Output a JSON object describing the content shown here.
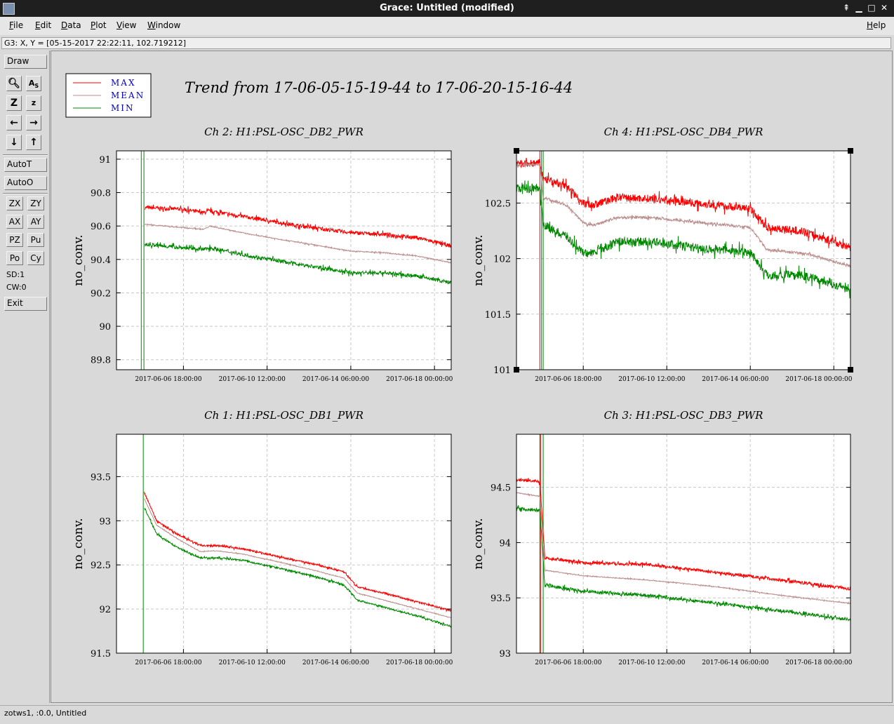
{
  "window": {
    "title": "Grace: Untitled (modified)"
  },
  "menu": [
    "File",
    "Edit",
    "Data",
    "Plot",
    "View",
    "Window"
  ],
  "help": "Help",
  "locator": "G3: X, Y = [05-15-2017 22:22:11, 102.719212]",
  "tools": {
    "draw": "Draw",
    "autoT": "AutoT",
    "autoO": "AutoO",
    "grid": [
      "ZX",
      "ZY",
      "AX",
      "AY",
      "PZ",
      "Pu",
      "Po",
      "Cy"
    ],
    "sd": "SD:1",
    "cw": "CW:0",
    "exit": "Exit"
  },
  "status": "zotws1, :0.0, Untitled",
  "plot": {
    "title": "Trend from 17-06-05-15-19-44 to 17-06-20-15-16-44",
    "legend": [
      {
        "label": "MAX",
        "color": "#ff0000"
      },
      {
        "label": "MEAN",
        "color": "#bc8f8f"
      },
      {
        "label": "MIN",
        "color": "#008800"
      }
    ]
  },
  "chart_data": [
    {
      "type": "line",
      "title": "Ch 2: H1:PSL-OSC_DB2_PWR",
      "ylabel": "no_conv.",
      "xticks": [
        "2017-06-06 18:00:00",
        "2017-06-10 12:00:00",
        "2017-06-14 06:00:00",
        "2017-06-18 00:00:00"
      ],
      "yticks": [
        89.8,
        90,
        90.2,
        90.4,
        90.6,
        90.8,
        91
      ],
      "ylim": [
        89.74,
        91.05
      ],
      "grid": true,
      "spikes": [
        {
          "x": 0.074,
          "color": "#008800"
        },
        {
          "x": 0.082,
          "color": "#008800"
        }
      ],
      "series": [
        {
          "name": "MAX",
          "color": "#ff0000",
          "start": 0.085,
          "noise": 0.011,
          "points": [
            [
              0.085,
              90.71
            ],
            [
              0.2,
              90.7
            ],
            [
              0.26,
              90.68
            ],
            [
              0.28,
              90.69
            ],
            [
              0.4,
              90.65
            ],
            [
              0.55,
              90.6
            ],
            [
              0.7,
              90.56
            ],
            [
              0.8,
              90.55
            ],
            [
              0.9,
              90.53
            ],
            [
              1,
              90.48
            ]
          ]
        },
        {
          "name": "MEAN",
          "color": "#bc8f8f",
          "start": 0.085,
          "noise": 0.003,
          "points": [
            [
              0.085,
              90.61
            ],
            [
              0.2,
              90.59
            ],
            [
              0.26,
              90.58
            ],
            [
              0.28,
              90.6
            ],
            [
              0.4,
              90.55
            ],
            [
              0.55,
              90.5
            ],
            [
              0.7,
              90.45
            ],
            [
              0.8,
              90.44
            ],
            [
              0.9,
              90.42
            ],
            [
              1,
              90.38
            ]
          ]
        },
        {
          "name": "MIN",
          "color": "#008800",
          "start": 0.085,
          "noise": 0.011,
          "points": [
            [
              0.085,
              90.49
            ],
            [
              0.2,
              90.47
            ],
            [
              0.26,
              90.46
            ],
            [
              0.28,
              90.47
            ],
            [
              0.4,
              90.42
            ],
            [
              0.55,
              90.37
            ],
            [
              0.7,
              90.32
            ],
            [
              0.8,
              90.32
            ],
            [
              0.9,
              90.3
            ],
            [
              1,
              90.26
            ]
          ]
        }
      ]
    },
    {
      "type": "line",
      "title": "Ch 4: H1:PSL-OSC_DB4_PWR",
      "ylabel": "no_conv.",
      "xticks": [
        "2017-06-06 18:00:00",
        "2017-06-10 12:00:00",
        "2017-06-14 06:00:00",
        "2017-06-18 00:00:00"
      ],
      "yticks": [
        101,
        101.5,
        102,
        102.5
      ],
      "ylim": [
        101,
        102.97
      ],
      "grid": true,
      "selected": true,
      "spikes": [
        {
          "x": 0.07,
          "color": "#ff0000"
        },
        {
          "x": 0.08,
          "color": "#008800"
        },
        {
          "x": 0.075,
          "color": "#008800"
        }
      ],
      "series": [
        {
          "name": "MAX",
          "color": "#ff0000",
          "start": 0,
          "noise": 0.035,
          "points": [
            [
              0,
              102.85
            ],
            [
              0.07,
              102.86
            ],
            [
              0.08,
              102.72
            ],
            [
              0.15,
              102.65
            ],
            [
              0.2,
              102.5
            ],
            [
              0.23,
              102.48
            ],
            [
              0.3,
              102.55
            ],
            [
              0.4,
              102.54
            ],
            [
              0.6,
              102.48
            ],
            [
              0.7,
              102.45
            ],
            [
              0.75,
              102.28
            ],
            [
              0.85,
              102.25
            ],
            [
              0.9,
              102.2
            ],
            [
              1,
              102.1
            ]
          ]
        },
        {
          "name": "MEAN",
          "color": "#bc8f8f",
          "start": 0,
          "noise": 0.012,
          "points": [
            [
              0,
              102.84
            ],
            [
              0.07,
              102.85
            ],
            [
              0.08,
              102.55
            ],
            [
              0.15,
              102.48
            ],
            [
              0.2,
              102.32
            ],
            [
              0.23,
              102.3
            ],
            [
              0.3,
              102.37
            ],
            [
              0.4,
              102.37
            ],
            [
              0.6,
              102.31
            ],
            [
              0.7,
              102.28
            ],
            [
              0.75,
              102.08
            ],
            [
              0.85,
              102.05
            ],
            [
              0.9,
              102.02
            ],
            [
              1,
              101.93
            ]
          ]
        },
        {
          "name": "MIN",
          "color": "#008800",
          "start": 0,
          "noise": 0.04,
          "points": [
            [
              0,
              102.63
            ],
            [
              0.07,
              102.64
            ],
            [
              0.08,
              102.3
            ],
            [
              0.15,
              102.2
            ],
            [
              0.2,
              102.05
            ],
            [
              0.23,
              102.05
            ],
            [
              0.3,
              102.15
            ],
            [
              0.4,
              102.15
            ],
            [
              0.6,
              102.08
            ],
            [
              0.7,
              102.06
            ],
            [
              0.75,
              101.85
            ],
            [
              0.85,
              101.85
            ],
            [
              0.9,
              101.82
            ],
            [
              1,
              101.72
            ]
          ]
        }
      ]
    },
    {
      "type": "line",
      "title": "Ch 1: H1:PSL-OSC_DB1_PWR",
      "ylabel": "no_conv.",
      "xticks": [
        "2017-06-06 18:00:00",
        "2017-06-10 12:00:00",
        "2017-06-14 06:00:00",
        "2017-06-18 00:00:00"
      ],
      "yticks": [
        91.5,
        92,
        92.5,
        93,
        93.5
      ],
      "ylim": [
        91.5,
        93.98
      ],
      "grid": true,
      "spikes": [
        {
          "x": 0.08,
          "color": "#008800"
        }
      ],
      "series": [
        {
          "name": "MAX",
          "color": "#ff0000",
          "start": 0.083,
          "noise": 0.01,
          "points": [
            [
              0.083,
              93.32
            ],
            [
              0.12,
              93.0
            ],
            [
              0.18,
              92.85
            ],
            [
              0.25,
              92.72
            ],
            [
              0.3,
              92.72
            ],
            [
              0.38,
              92.68
            ],
            [
              0.5,
              92.58
            ],
            [
              0.6,
              92.5
            ],
            [
              0.68,
              92.42
            ],
            [
              0.72,
              92.25
            ],
            [
              0.8,
              92.18
            ],
            [
              0.9,
              92.08
            ],
            [
              1,
              91.98
            ]
          ]
        },
        {
          "name": "MEAN",
          "color": "#bc8f8f",
          "start": 0.083,
          "noise": 0.004,
          "points": [
            [
              0.083,
              93.25
            ],
            [
              0.12,
              92.95
            ],
            [
              0.18,
              92.8
            ],
            [
              0.25,
              92.65
            ],
            [
              0.3,
              92.66
            ],
            [
              0.38,
              92.62
            ],
            [
              0.5,
              92.52
            ],
            [
              0.6,
              92.43
            ],
            [
              0.68,
              92.35
            ],
            [
              0.72,
              92.18
            ],
            [
              0.8,
              92.1
            ],
            [
              0.9,
              92.0
            ],
            [
              1,
              91.9
            ]
          ]
        },
        {
          "name": "MIN",
          "color": "#008800",
          "start": 0.083,
          "noise": 0.01,
          "points": [
            [
              0.083,
              93.15
            ],
            [
              0.12,
              92.85
            ],
            [
              0.18,
              92.7
            ],
            [
              0.25,
              92.58
            ],
            [
              0.3,
              92.58
            ],
            [
              0.38,
              92.55
            ],
            [
              0.5,
              92.45
            ],
            [
              0.6,
              92.36
            ],
            [
              0.68,
              92.27
            ],
            [
              0.72,
              92.1
            ],
            [
              0.8,
              92.02
            ],
            [
              0.9,
              91.92
            ],
            [
              1,
              91.8
            ]
          ]
        }
      ]
    },
    {
      "type": "line",
      "title": "Ch 3: H1:PSL-OSC_DB3_PWR",
      "ylabel": "no_conv.",
      "xticks": [
        "2017-06-06 18:00:00",
        "2017-06-10 12:00:00",
        "2017-06-14 06:00:00",
        "2017-06-18 00:00:00"
      ],
      "yticks": [
        93,
        93.5,
        94,
        94.5
      ],
      "ylim": [
        93,
        94.98
      ],
      "grid": true,
      "spikes": [
        {
          "x": 0.072,
          "color": "#ff0000"
        },
        {
          "x": 0.07,
          "color": "#008800"
        },
        {
          "x": 0.08,
          "color": "#008800"
        }
      ],
      "series": [
        {
          "name": "MAX",
          "color": "#ff0000",
          "start": 0,
          "noise": 0.014,
          "points": [
            [
              0,
              94.57
            ],
            [
              0.07,
              94.55
            ],
            [
              0.085,
              93.86
            ],
            [
              0.2,
              93.82
            ],
            [
              0.4,
              93.8
            ],
            [
              0.6,
              93.73
            ],
            [
              0.8,
              93.66
            ],
            [
              1,
              93.58
            ]
          ]
        },
        {
          "name": "MEAN",
          "color": "#bc8f8f",
          "start": 0,
          "noise": 0.004,
          "points": [
            [
              0,
              94.45
            ],
            [
              0.07,
              94.42
            ],
            [
              0.085,
              93.75
            ],
            [
              0.2,
              93.7
            ],
            [
              0.4,
              93.66
            ],
            [
              0.6,
              93.6
            ],
            [
              0.8,
              93.52
            ],
            [
              1,
              93.45
            ]
          ]
        },
        {
          "name": "MIN",
          "color": "#008800",
          "start": 0,
          "noise": 0.014,
          "points": [
            [
              0,
              94.31
            ],
            [
              0.07,
              94.29
            ],
            [
              0.085,
              93.62
            ],
            [
              0.2,
              93.56
            ],
            [
              0.4,
              93.52
            ],
            [
              0.6,
              93.45
            ],
            [
              0.8,
              93.38
            ],
            [
              1,
              93.3
            ]
          ]
        }
      ]
    }
  ]
}
